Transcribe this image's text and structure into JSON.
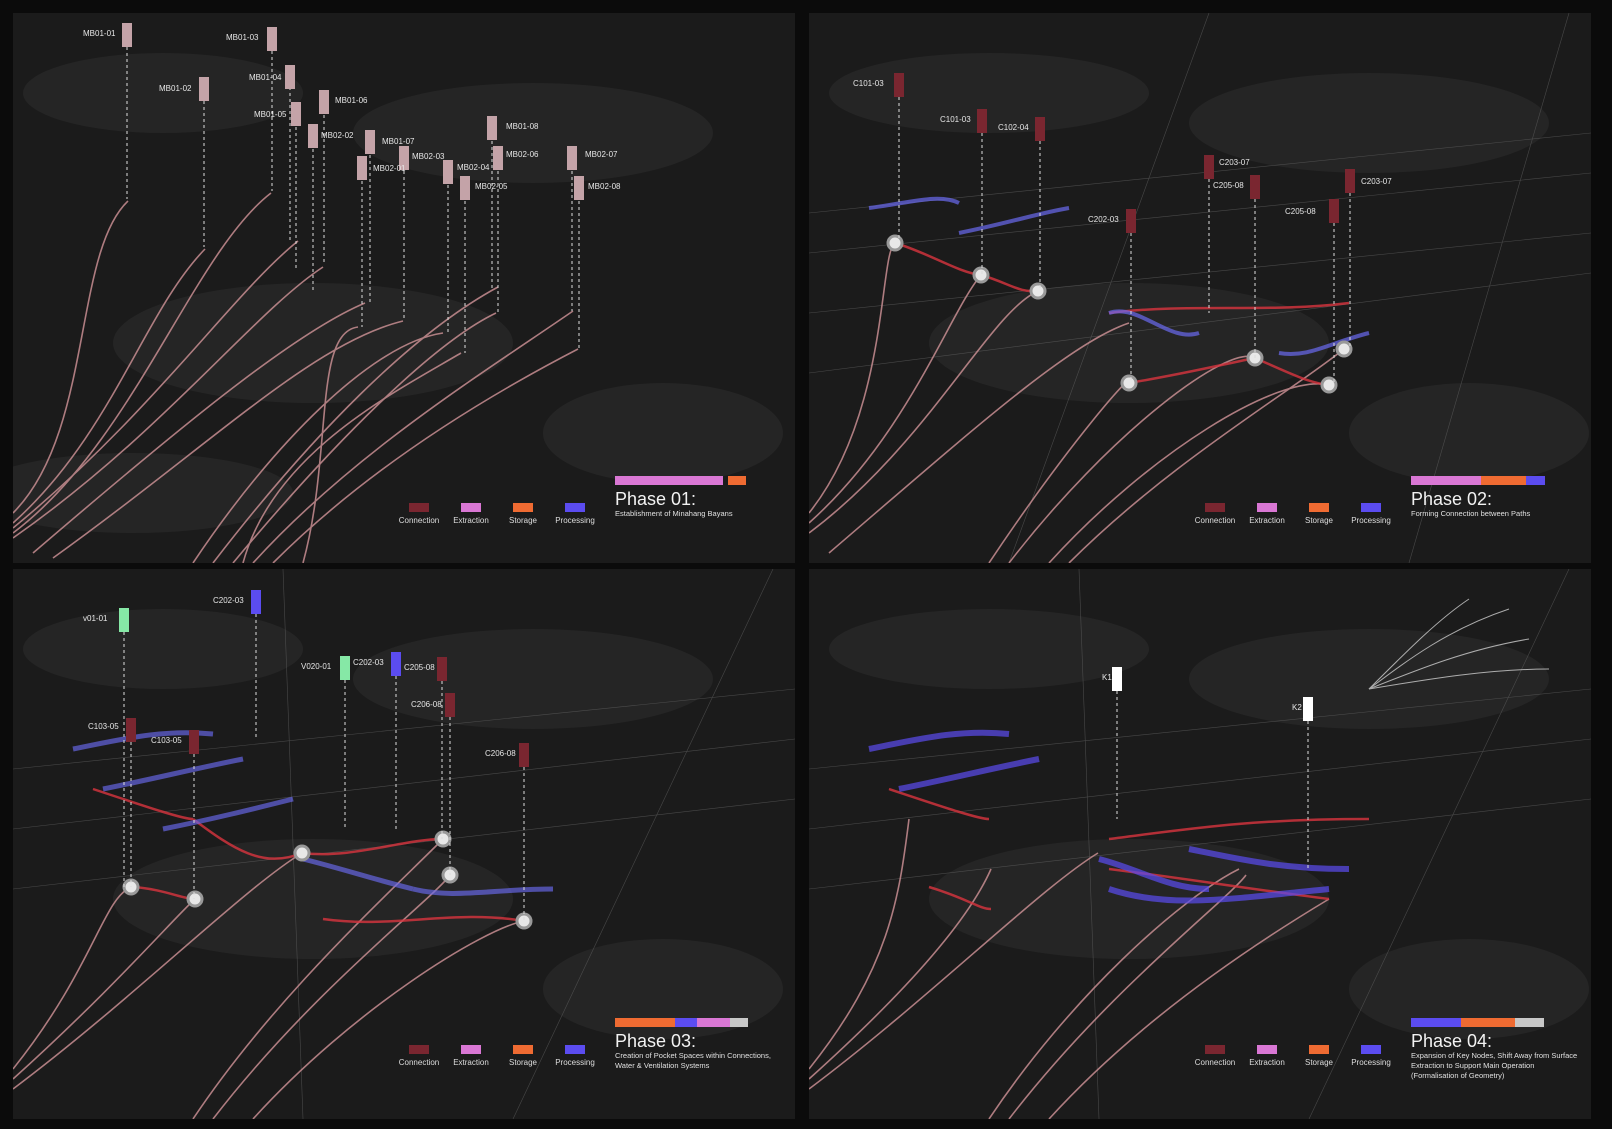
{
  "colors": {
    "connection": "#7a2630",
    "extraction": "#d977d4",
    "storage": "#ef6b32",
    "processing": "#5b4cf0",
    "ventilation": "#86e8a6",
    "key": "#ffffff",
    "neutral": "#c8c8c8",
    "path": "#c88e92"
  },
  "legend": [
    "Connection",
    "Extraction",
    "Storage",
    "Processing"
  ],
  "panels": [
    {
      "title": "Phase 01:",
      "subtitle": "Establishment of Minahang Bayans",
      "tags": [
        "MB01-01",
        "MB01-02",
        "MB01-03",
        "MB01-04",
        "MB01-05",
        "MB01-06",
        "MB02-02",
        "MB01-07",
        "MB02-03",
        "MB02-01",
        "MB02-04",
        "MB02-05",
        "MB01-08",
        "MB02-06",
        "MB02-07",
        "MB02-08"
      ]
    },
    {
      "title": "Phase 02:",
      "subtitle": "Forming Connection between Paths",
      "tags": [
        "C101-03",
        "C101-03",
        "C102-04",
        "C203-07",
        "C205-08",
        "C203-07",
        "C202-03",
        "C205-08"
      ]
    },
    {
      "title": "Phase 03:",
      "subtitle": "Creation of Pocket Spaces within Connections, Water & Ventilation Systems",
      "tags": [
        "v01-01",
        "C202-03",
        "V020-01",
        "C202-03",
        "C205-08",
        "C206-08",
        "C103-05",
        "C103-05",
        "C206-08"
      ]
    },
    {
      "title": "Phase 04:",
      "subtitle": "Expansion of Key Nodes, Shift Away from Surface Extraction to Support Main Operation (Formalisation of Geometry)",
      "tags": [
        "K1",
        "K2"
      ]
    }
  ]
}
